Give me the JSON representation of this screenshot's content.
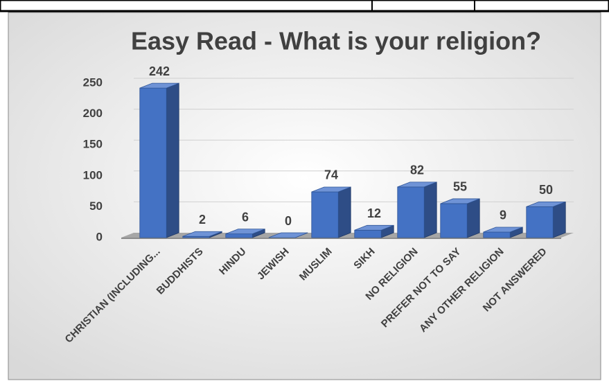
{
  "chart_data": {
    "type": "bar3d",
    "title": "Easy Read - What is your religion?",
    "categories": [
      "CHRISTIAN (INCLUDING...",
      "BUDDHISTS",
      "HINDU",
      "JEWISH",
      "MUSLIM",
      "SIKH",
      "NO RELIGION",
      "PREFER NOT TO SAY",
      "ANY OTHER RELIGION",
      "NOT ANSWERED"
    ],
    "values": [
      242,
      2,
      6,
      0,
      74,
      12,
      82,
      55,
      9,
      50
    ],
    "color": "#4472c4",
    "ylim": [
      0,
      250
    ],
    "yticks": [
      0,
      50,
      100,
      150,
      200,
      250
    ],
    "grid": true
  }
}
